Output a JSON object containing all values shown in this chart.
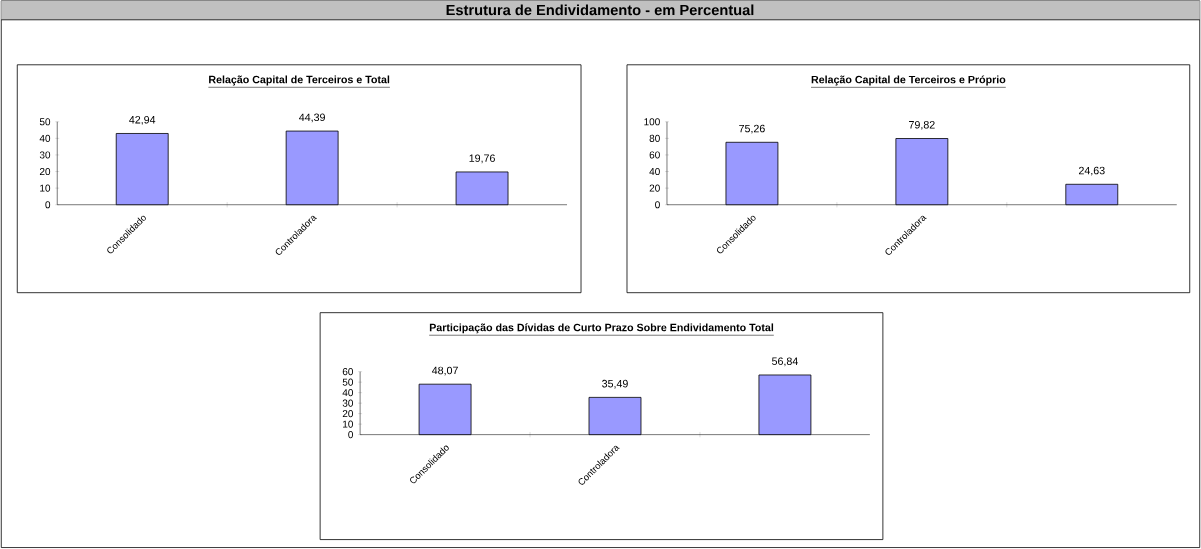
{
  "chart_data": [
    {
      "type": "other",
      "title": "Estrutura de Endividamento - em Percentual"
    },
    {
      "type": "bar",
      "title": "Relação Capital de Terceiros e Total",
      "categories": [
        "Consolidado",
        "Controladora",
        null
      ],
      "values": [
        42.94,
        44.39,
        19.76
      ],
      "value_labels": [
        "42,94",
        "44,39",
        "19,76"
      ],
      "color": "#9999ff",
      "ylim": [
        0,
        50
      ],
      "yticks": [
        0,
        10,
        20,
        30,
        40,
        50
      ]
    },
    {
      "type": "bar",
      "title": "Relação Capital de Terceiros e Próprio",
      "categories": [
        "Consolidado",
        "Controladora",
        null
      ],
      "values": [
        75.26,
        79.82,
        24.63
      ],
      "value_labels": [
        "75,26",
        "79,82",
        "24,63"
      ],
      "color": "#9999ff",
      "ylim": [
        0,
        100
      ],
      "yticks": [
        0,
        20,
        40,
        60,
        80,
        100
      ]
    },
    {
      "type": "bar",
      "title": "Participação das Dívidas de Curto Prazo Sobre Endividamento Total",
      "categories": [
        "Consolidado",
        "Controladora",
        null
      ],
      "values": [
        48.07,
        35.49,
        56.84
      ],
      "value_labels": [
        "48,07",
        "35,49",
        "56,84"
      ],
      "color": "#9999ff",
      "ylim": [
        0,
        60
      ],
      "yticks": [
        0,
        10,
        20,
        30,
        40,
        50,
        60
      ]
    }
  ]
}
